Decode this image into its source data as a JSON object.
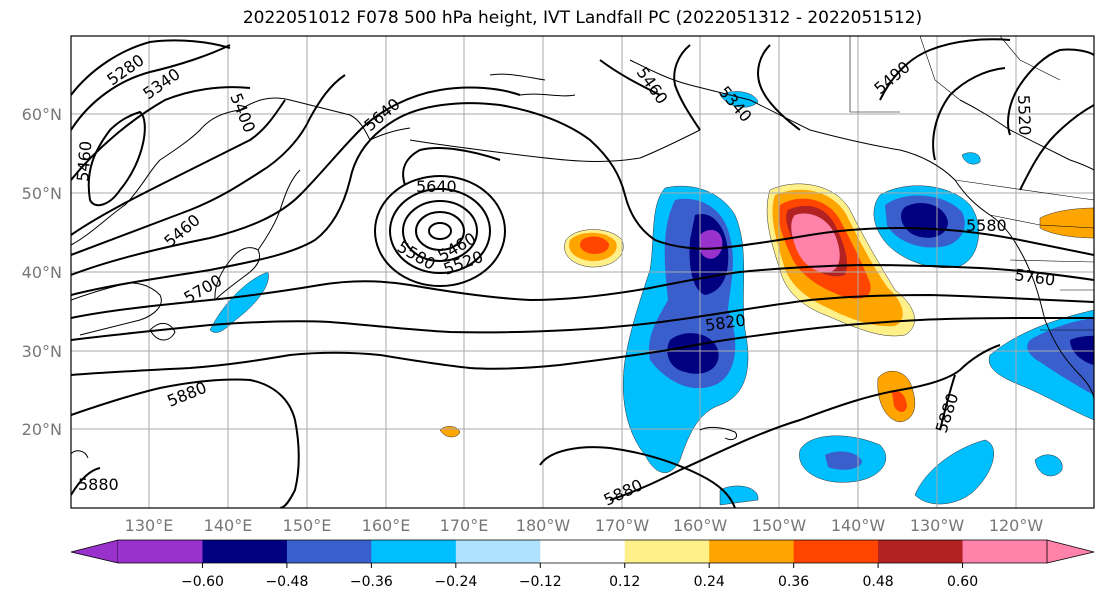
{
  "title": "2022051012 F078 500 hPa height, IVT Landfall PC (2022051312 - 2022051512)",
  "lat_labels": [
    "60°N",
    "50°N",
    "40°N",
    "30°N",
    "20°N"
  ],
  "lon_labels": [
    "130°E",
    "140°E",
    "150°E",
    "160°E",
    "170°E",
    "180°W",
    "170°W",
    "160°W",
    "150°W",
    "140°W",
    "130°W",
    "120°W"
  ],
  "contour_labels": [
    "5280",
    "5340",
    "5400",
    "5460",
    "5640",
    "5490",
    "5340",
    "5460",
    "5520",
    "5460",
    "5640",
    "5520",
    "5460",
    "5580",
    "5700",
    "5580",
    "5760",
    "5820",
    "5880",
    "5880",
    "5880",
    "5880"
  ],
  "colorbar": {
    "ticks": [
      "−0.60",
      "−0.48",
      "−0.36",
      "−0.24",
      "−0.12",
      "0.12",
      "0.24",
      "0.36",
      "0.48",
      "0.60"
    ],
    "colors": [
      "#9932cc",
      "#000080",
      "#3a5fcd",
      "#00bfff",
      "#b0e2ff",
      "#ffffff",
      "#fff08a",
      "#ffa500",
      "#ff4500",
      "#b22222",
      "#ff82ab"
    ]
  }
}
